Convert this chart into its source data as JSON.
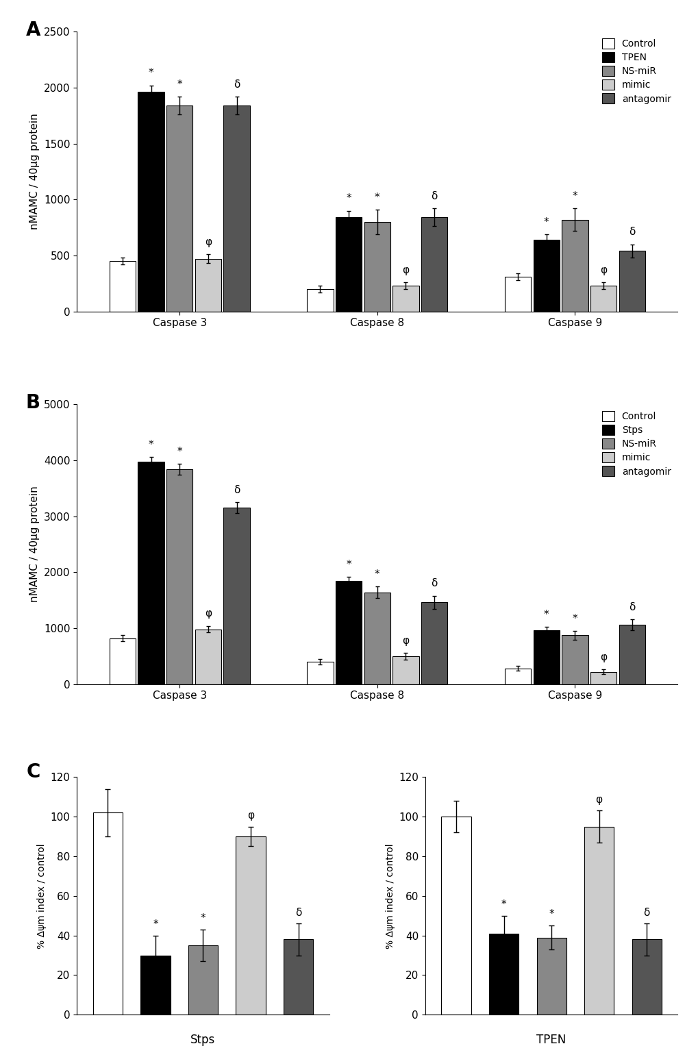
{
  "panel_A": {
    "ylabel": "nMAMC / 40μg protein",
    "ylim": [
      0,
      2500
    ],
    "yticks": [
      0,
      500,
      1000,
      1500,
      2000,
      2500
    ],
    "groups": [
      "Caspase 3",
      "Caspase 8",
      "Caspase 9"
    ],
    "treatment_key": "TPEN",
    "bar_data": {
      "Control": [
        450,
        200,
        310
      ],
      "TPEN": [
        1960,
        840,
        640
      ],
      "NS-miR": [
        1840,
        800,
        820
      ],
      "mimic": [
        470,
        230,
        230
      ],
      "antagomir": [
        1840,
        840,
        540
      ]
    },
    "bar_errors": {
      "Control": [
        30,
        30,
        30
      ],
      "TPEN": [
        60,
        60,
        50
      ],
      "NS-miR": [
        80,
        110,
        100
      ],
      "mimic": [
        40,
        30,
        30
      ],
      "antagomir": [
        80,
        80,
        60
      ]
    },
    "annotations": {
      "Caspase 3": {
        "TPEN": "*",
        "NS-miR": "*",
        "antagomir": "δ",
        "mimic": "φ"
      },
      "Caspase 8": {
        "TPEN": "*",
        "NS-miR": "*",
        "antagomir": "δ",
        "mimic": "φ"
      },
      "Caspase 9": {
        "TPEN": "*",
        "NS-miR": "*",
        "antagomir": "δ",
        "mimic": "φ"
      }
    }
  },
  "panel_B": {
    "ylabel": "nMAMC / 40μg protein",
    "ylim": [
      0,
      5000
    ],
    "yticks": [
      0,
      1000,
      2000,
      3000,
      4000,
      5000
    ],
    "groups": [
      "Caspase 3",
      "Caspase 8",
      "Caspase 9"
    ],
    "treatment_key": "Stps",
    "bar_data": {
      "Control": [
        820,
        400,
        280
      ],
      "Stps": [
        3980,
        1840,
        960
      ],
      "NS-miR": [
        3840,
        1640,
        870
      ],
      "mimic": [
        980,
        500,
        220
      ],
      "antagomir": [
        3150,
        1460,
        1060
      ]
    },
    "bar_errors": {
      "Control": [
        50,
        50,
        40
      ],
      "Stps": [
        80,
        80,
        60
      ],
      "NS-miR": [
        100,
        100,
        80
      ],
      "mimic": [
        60,
        60,
        40
      ],
      "antagomir": [
        100,
        120,
        100
      ]
    },
    "annotations": {
      "Caspase 3": {
        "Stps": "*",
        "NS-miR": "*",
        "antagomir": "δ",
        "mimic": "φ"
      },
      "Caspase 8": {
        "Stps": "*",
        "NS-miR": "*",
        "antagomir": "δ",
        "mimic": "φ"
      },
      "Caspase 9": {
        "Stps": "*",
        "NS-miR": "*",
        "antagomir": "δ",
        "mimic": "φ"
      }
    }
  },
  "panel_C": {
    "ylabel": "% Δψm index / control",
    "ylim": [
      0,
      120
    ],
    "yticks": [
      0,
      20,
      40,
      60,
      80,
      100,
      120
    ],
    "bar_data": {
      "Stps": {
        "Control": 102,
        "treatment": 30,
        "NS-miR": 35,
        "mimic": 90,
        "antagomir": 38
      },
      "TPEN": {
        "Control": 100,
        "treatment": 41,
        "NS-miR": 39,
        "mimic": 95,
        "antagomir": 38
      }
    },
    "bar_errors": {
      "Stps": {
        "Control": 12,
        "treatment": 10,
        "NS-miR": 8,
        "mimic": 5,
        "antagomir": 8
      },
      "TPEN": {
        "Control": 8,
        "treatment": 9,
        "NS-miR": 6,
        "mimic": 8,
        "antagomir": 8
      }
    },
    "annotations": {
      "Stps": {
        "treatment": "*",
        "NS-miR": "*",
        "mimic": "φ",
        "antagomir": "δ"
      },
      "TPEN": {
        "treatment": "*",
        "NS-miR": "*",
        "mimic": "φ",
        "antagomir": "δ"
      }
    },
    "treatment_keys": {
      "Stps": "Stps",
      "TPEN": "TPEN"
    }
  },
  "colors": {
    "Control": "#ffffff",
    "treatment": "#000000",
    "NS-miR": "#888888",
    "mimic": "#cccccc",
    "antagomir": "#555555"
  },
  "edge_color": "#000000"
}
